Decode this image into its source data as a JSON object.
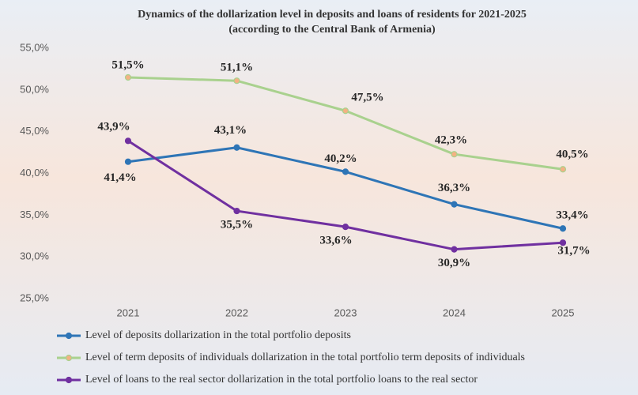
{
  "chart_data": {
    "type": "line",
    "title": "Dynamics of the  dollarization level in deposits and loans of residents for 2021-2025",
    "subtitle": "(according to the Central Bank of Armenia)",
    "categories": [
      "2021",
      "2022",
      "2023",
      "2024",
      "2025"
    ],
    "ylim": [
      25,
      55
    ],
    "yticks": [
      {
        "value": 25,
        "label": "25,0%"
      },
      {
        "value": 30,
        "label": "30,0%"
      },
      {
        "value": 35,
        "label": "35,0%"
      },
      {
        "value": 40,
        "label": "40,0%"
      },
      {
        "value": 45,
        "label": "45,0%"
      },
      {
        "value": 50,
        "label": "50,0%"
      },
      {
        "value": 55,
        "label": "55,0%"
      }
    ],
    "grid": false,
    "legend": "bottom",
    "series": [
      {
        "name": "Level of deposits dollarization in the total portfolio deposits",
        "color": "#2e75b6",
        "marker_color": "#2e75b6",
        "values": [
          41.4,
          43.1,
          40.2,
          36.3,
          33.4
        ],
        "value_labels": [
          "41,4%",
          "43,1%",
          "40,2%",
          "36,3%",
          "33,4%"
        ]
      },
      {
        "name": "Level of term deposits of individuals dollarization in the total portfolio term deposits of individuals",
        "color": "#a9d18e",
        "marker_color": "#f4b183",
        "values": [
          51.5,
          51.1,
          47.5,
          42.3,
          40.5
        ],
        "value_labels": [
          "51,5%",
          "51,1%",
          "47,5%",
          "42,3%",
          "40,5%"
        ]
      },
      {
        "name": "Level of loans to the real sector dollarization in the total portfolio loans to the real sector",
        "color": "#7030a0",
        "marker_color": "#7030a0",
        "values": [
          43.9,
          35.5,
          33.6,
          30.9,
          31.7
        ],
        "value_labels": [
          "43,9%",
          "35,5%",
          "33,6%",
          "30,9%",
          "31,7%"
        ]
      }
    ]
  }
}
